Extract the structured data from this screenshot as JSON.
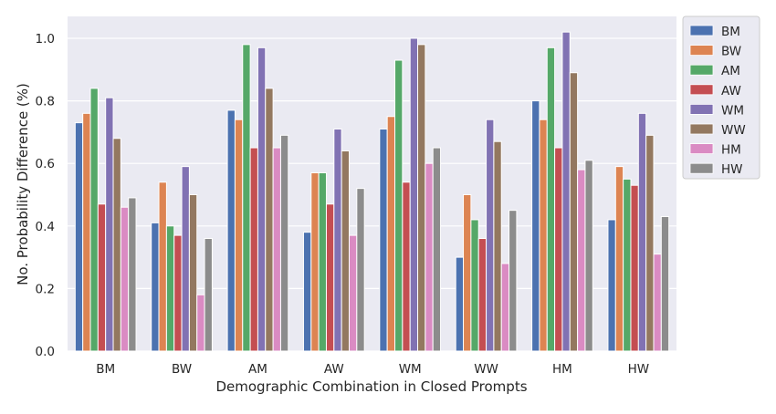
{
  "chart_data": {
    "type": "bar",
    "title": "",
    "xlabel": "Demographic Combination in Closed Prompts",
    "ylabel": "No. Probability Difference (%)",
    "ylim": [
      0,
      1.07
    ],
    "yticks": [
      "0.0",
      "0.2",
      "0.4",
      "0.6",
      "0.8",
      "1.0"
    ],
    "grid": true,
    "legend_position": "outside-top-right",
    "categories": [
      "BM",
      "BW",
      "AM",
      "AW",
      "WM",
      "WW",
      "HM",
      "HW"
    ],
    "series": [
      {
        "name": "BM",
        "color": "#4c72b0",
        "values": [
          0.73,
          0.41,
          0.77,
          0.38,
          0.71,
          0.3,
          0.8,
          0.42
        ]
      },
      {
        "name": "BW",
        "color": "#dd8452",
        "values": [
          0.76,
          0.54,
          0.74,
          0.57,
          0.75,
          0.5,
          0.74,
          0.59
        ]
      },
      {
        "name": "AM",
        "color": "#55a868",
        "values": [
          0.84,
          0.4,
          0.98,
          0.57,
          0.93,
          0.42,
          0.97,
          0.55
        ]
      },
      {
        "name": "AW",
        "color": "#c44e52",
        "values": [
          0.47,
          0.37,
          0.65,
          0.47,
          0.54,
          0.36,
          0.65,
          0.53
        ]
      },
      {
        "name": "WM",
        "color": "#8172b3",
        "values": [
          0.81,
          0.59,
          0.97,
          0.71,
          1.0,
          0.74,
          1.02,
          0.76
        ]
      },
      {
        "name": "WW",
        "color": "#937860",
        "values": [
          0.68,
          0.5,
          0.84,
          0.64,
          0.98,
          0.67,
          0.89,
          0.69
        ]
      },
      {
        "name": "HM",
        "color": "#da8bc3",
        "values": [
          0.46,
          0.18,
          0.65,
          0.37,
          0.6,
          0.28,
          0.58,
          0.31
        ]
      },
      {
        "name": "HW",
        "color": "#8c8c8c",
        "values": [
          0.49,
          0.36,
          0.69,
          0.52,
          0.65,
          0.45,
          0.61,
          0.43
        ]
      }
    ]
  }
}
